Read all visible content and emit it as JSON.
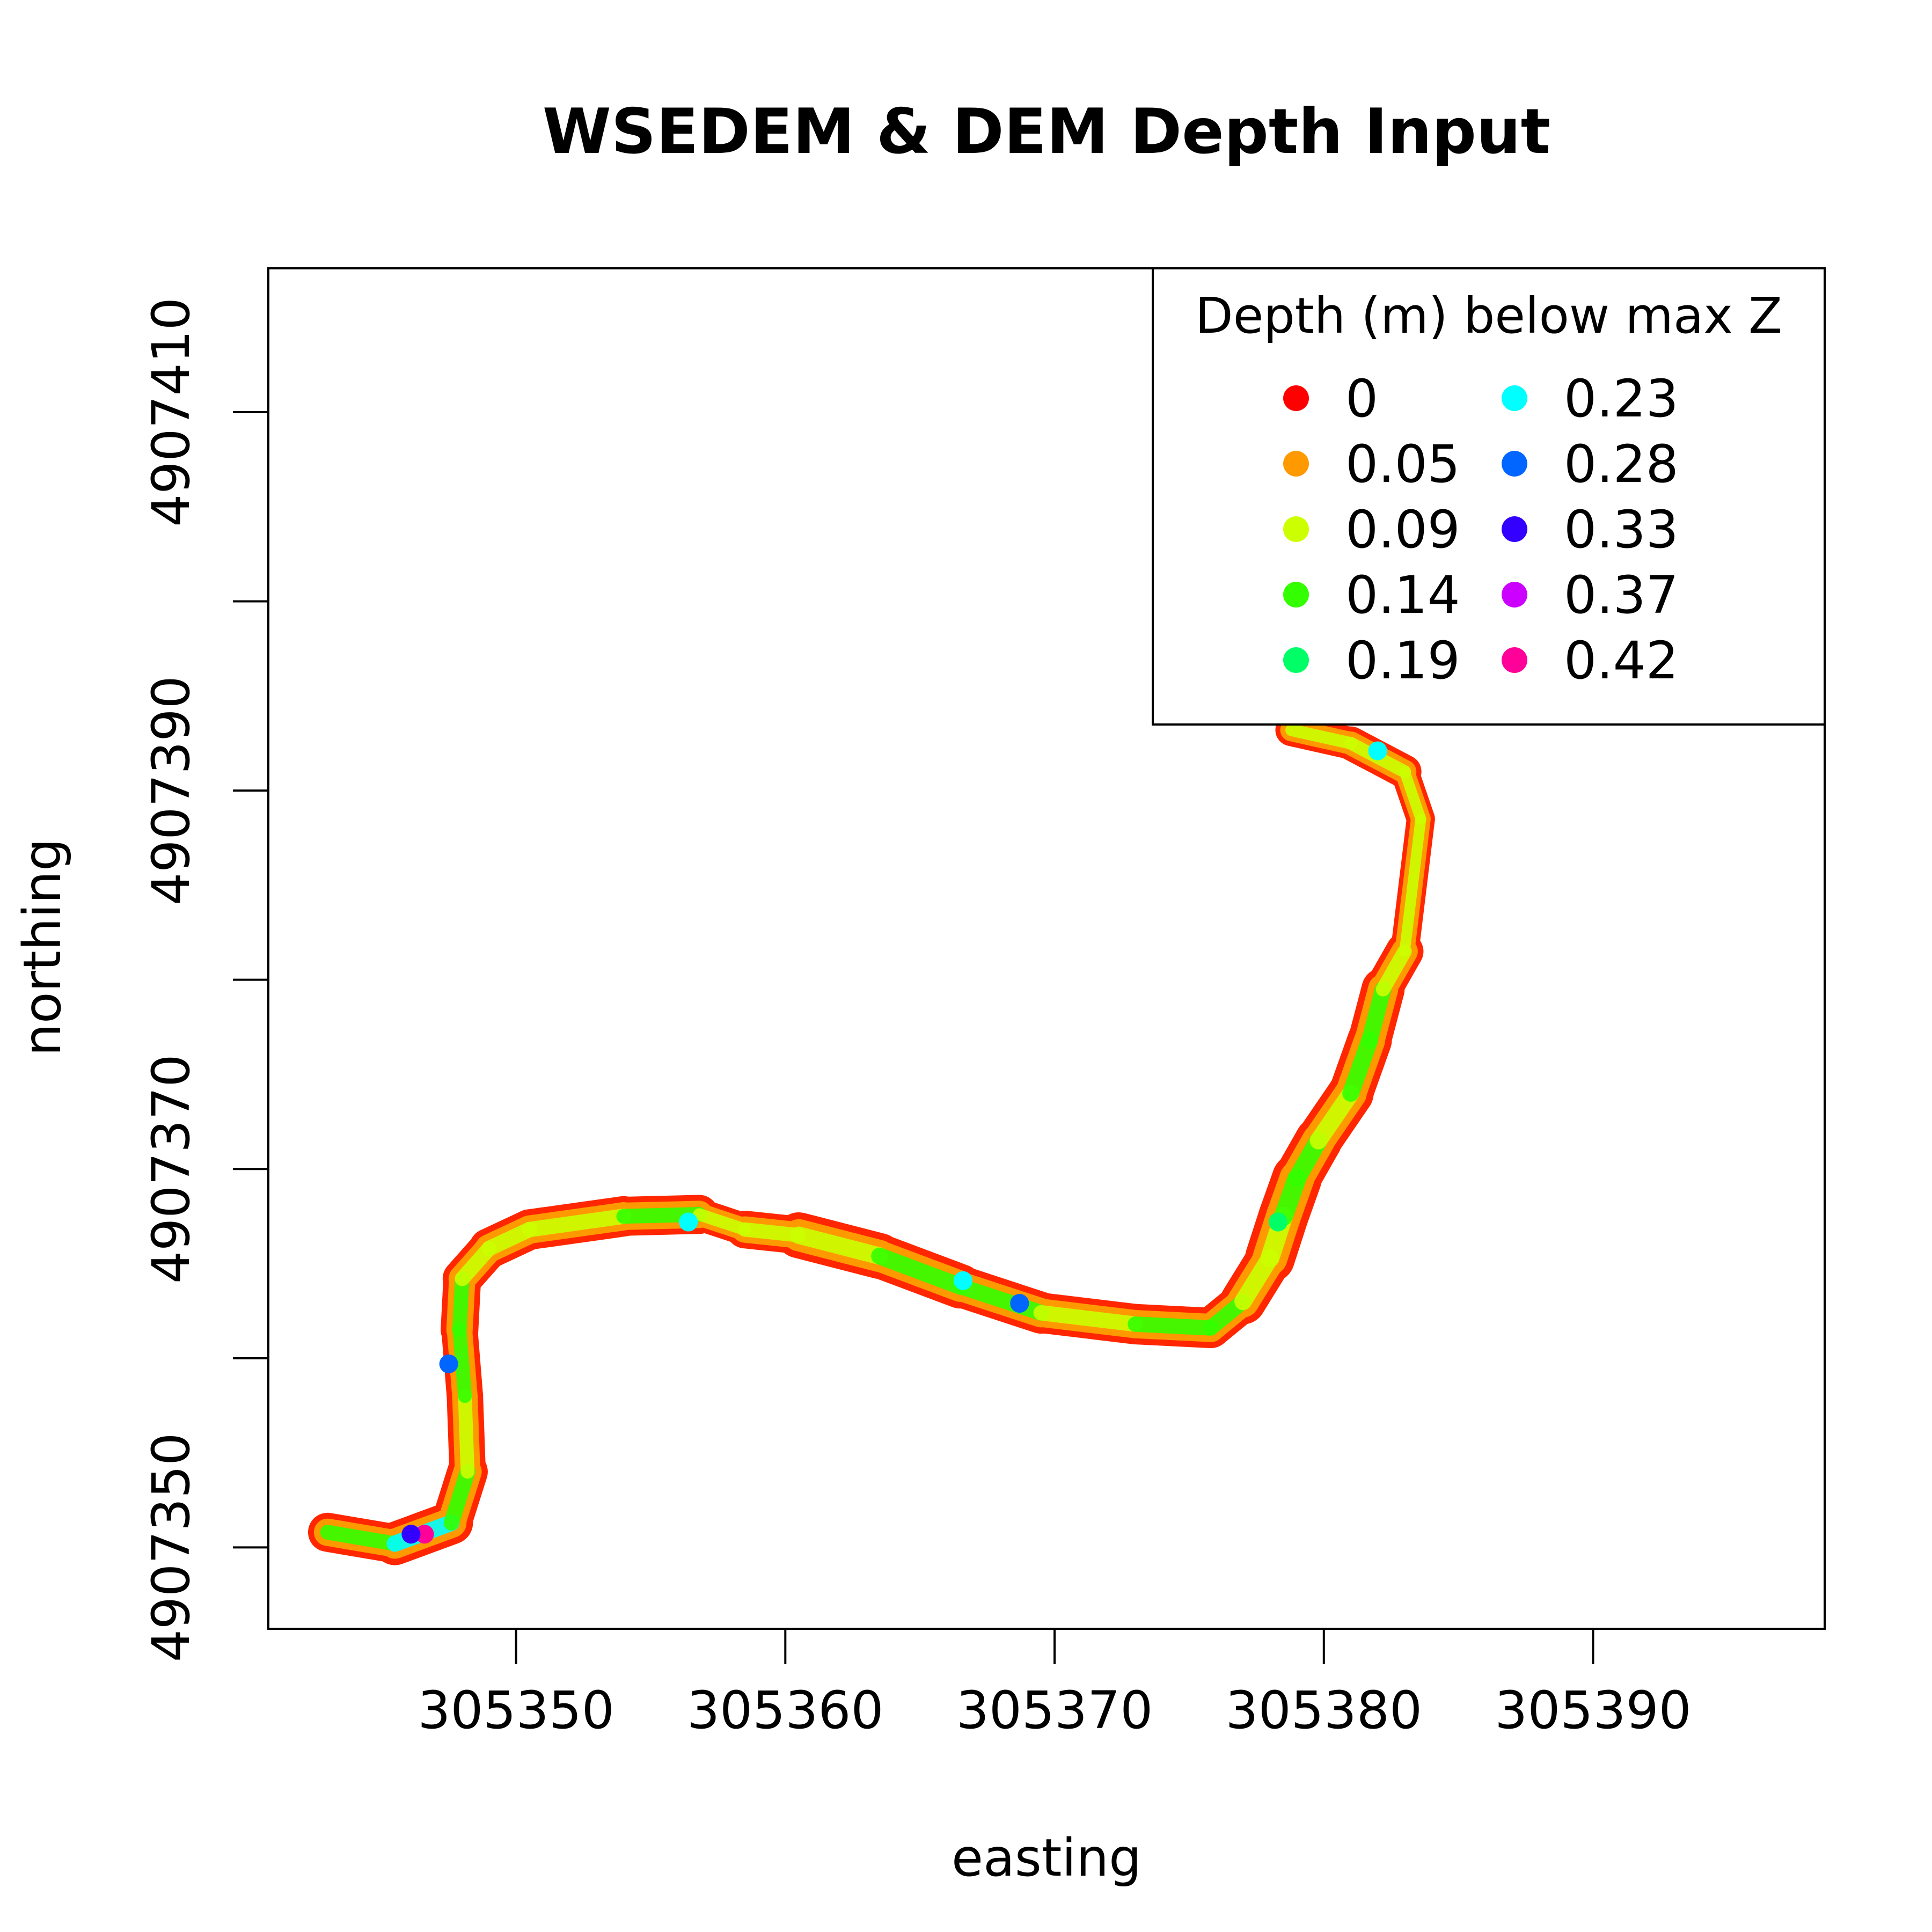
{
  "chart_data": {
    "type": "scatter",
    "title": "WSEDEM & DEM Depth Input",
    "xlabel": "easting",
    "ylabel": "northing",
    "xlim": [
      305340.8,
      305398.6
    ],
    "ylim": [
      4907345.7,
      4907417.6
    ],
    "xticks": [
      305350,
      305360,
      305370,
      305380,
      305390
    ],
    "yticks": [
      4907350,
      4907360,
      4907370,
      4907380,
      4907390,
      4907400,
      4907410
    ],
    "xtick_labels": [
      "305350",
      "305360",
      "305370",
      "305380",
      "305390"
    ],
    "ytick_labels": [
      "4907350",
      "",
      "4907370",
      "",
      "4907390",
      "",
      "4907410"
    ],
    "grid": false,
    "legend": {
      "title": "Depth (m) below max Z",
      "position": "top-right",
      "columns": 2,
      "entries": [
        {
          "label": "0",
          "color": "#FF0000"
        },
        {
          "label": "0.05",
          "color": "#FF9900"
        },
        {
          "label": "0.09",
          "color": "#CCFF00"
        },
        {
          "label": "0.14",
          "color": "#33FF00"
        },
        {
          "label": "0.19",
          "color": "#00FF66"
        },
        {
          "label": "0.23",
          "color": "#00FFFF"
        },
        {
          "label": "0.28",
          "color": "#0066FF"
        },
        {
          "label": "0.33",
          "color": "#3300FF"
        },
        {
          "label": "0.37",
          "color": "#CC00FF"
        },
        {
          "label": "0.42",
          "color": "#FF0099"
        }
      ]
    },
    "series": [
      {
        "kind": "channel-centerline",
        "x": [
          305343.0,
          305345.5,
          305347.6,
          305348.2,
          305348.1,
          305347.9,
          305348.0,
          305349.0,
          305350.5,
          305354.0,
          305356.8,
          305358.5,
          305360.5,
          305363.5,
          305366.5,
          305369.5,
          305373.0,
          305375.8,
          305377.0,
          305378.0,
          305378.5,
          305379.0,
          305379.8,
          305381.0,
          305381.7,
          305382.2,
          305383.0,
          305383.6,
          305383.0,
          305381.0,
          305378.8
        ],
        "y": [
          4907350.8,
          4907350.2,
          4907351.3,
          4907354.0,
          4907358.0,
          4907361.5,
          4907364.2,
          4907365.8,
          4907366.8,
          4907367.5,
          4907367.6,
          4907366.8,
          4907366.5,
          4907365.4,
          4907363.8,
          4907362.4,
          4907361.8,
          4907361.6,
          4907363.0,
          4907365.3,
          4907367.5,
          4907369.5,
          4907371.5,
          4907374.0,
          4907376.8,
          4907379.5,
          4907381.5,
          4907388.5,
          4907391.0,
          4907392.5,
          4907393.2
        ],
        "width": [
          1.3,
          1.6,
          1.6,
          1.4,
          1.3,
          1.4,
          1.4,
          1.5,
          1.5,
          1.5,
          1.4,
          1.0,
          1.8,
          1.6,
          1.7,
          1.4,
          1.6,
          1.4,
          1.6,
          1.8,
          1.9,
          1.8,
          1.7,
          1.7,
          1.6,
          1.6,
          1.2,
          0.9,
          1.2,
          1.3,
          1.1
        ],
        "depth": [
          0.05,
          0.19,
          0.23,
          0.09,
          0.14,
          0.19,
          0.09,
          0.09,
          0.05,
          0.14,
          0.19,
          0.0,
          0.14,
          0.09,
          0.19,
          0.14,
          0.09,
          0.19,
          0.05,
          0.09,
          0.14,
          0.19,
          0.09,
          0.14,
          0.14,
          0.14,
          0.09,
          0.14,
          0.09,
          0.14,
          0.05
        ]
      }
    ],
    "deep_spots": [
      {
        "x": 305346.6,
        "y": 4907350.7,
        "depth": 0.42
      },
      {
        "x": 305346.1,
        "y": 4907350.7,
        "depth": 0.33
      },
      {
        "x": 305347.5,
        "y": 4907359.7,
        "depth": 0.28
      },
      {
        "x": 305356.4,
        "y": 4907367.2,
        "depth": 0.23
      },
      {
        "x": 305366.6,
        "y": 4907364.1,
        "depth": 0.23
      },
      {
        "x": 305368.7,
        "y": 4907362.9,
        "depth": 0.28
      },
      {
        "x": 305378.3,
        "y": 4907367.2,
        "depth": 0.19
      },
      {
        "x": 305382.0,
        "y": 4907392.1,
        "depth": 0.23
      }
    ]
  }
}
